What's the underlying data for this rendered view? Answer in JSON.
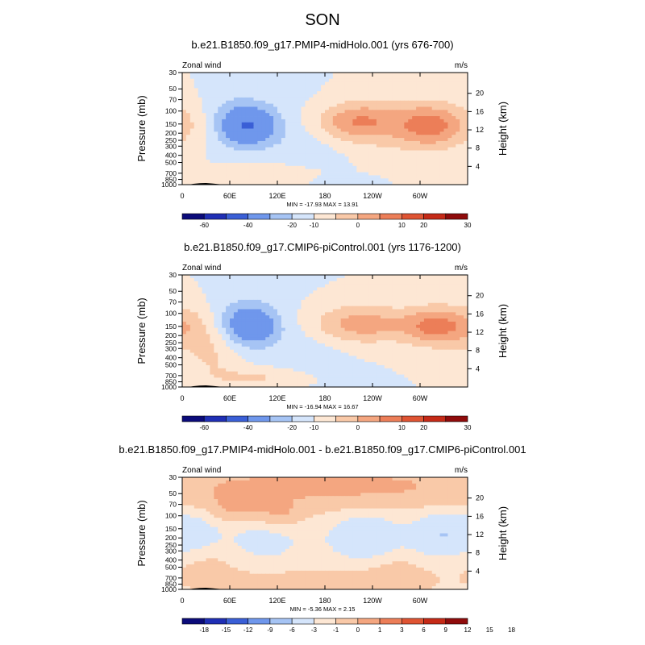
{
  "title": "SON",
  "colors": {
    "full": [
      "#0b0b7a",
      "#1f2fb5",
      "#3a5fd6",
      "#6f97ec",
      "#a6c4f4",
      "#d5e5fb",
      "#fde7d4",
      "#f9c9a8",
      "#f4a680",
      "#ec7e58",
      "#df5433",
      "#c52a17",
      "#8f0b0b"
    ],
    "diff": [
      "#0b0b7a",
      "#1f2fb5",
      "#3a5fd6",
      "#6f97ec",
      "#a6c4f4",
      "#d5e5fb",
      "#fde7d4",
      "#f9c9a8",
      "#f4a680",
      "#ec7e58",
      "#df5433",
      "#c52a17",
      "#8f0b0b"
    ],
    "topography": "#000000"
  },
  "chart_data": [
    {
      "type": "heatmap",
      "panel": "top",
      "title": "b.e21.B1850.f09_g17.PMIP4-midHolo.001 (yrs 676-700)",
      "left_label": "Zonal wind",
      "right_label": "m/s",
      "ylabel_left": "Pressure (mb)",
      "ylabel_right": "Height (km)",
      "x_ticks": [
        "0",
        "60E",
        "120E",
        "180",
        "120W",
        "60W"
      ],
      "x_tick_lon": [
        0,
        60,
        120,
        180,
        240,
        300
      ],
      "y_ticks": [
        "30",
        "50",
        "70",
        "100",
        "150",
        "200",
        "250",
        "300",
        "400",
        "500",
        "700",
        "850",
        "1000"
      ],
      "y_tick_p": [
        30,
        50,
        70,
        100,
        150,
        200,
        250,
        300,
        400,
        500,
        700,
        850,
        1000
      ],
      "height_ticks": [
        "4",
        "8",
        "12",
        "16",
        "20"
      ],
      "height_km": [
        4,
        8,
        12,
        16,
        20
      ],
      "stats": "MIN = -17.93   MAX =  13.91",
      "colorbar_labels": [
        "-60",
        "-40",
        "-20",
        "-10",
        "0",
        "10",
        "20",
        "30"
      ],
      "levels": [
        -70,
        -60,
        -50,
        -40,
        -30,
        -20,
        -15,
        -10,
        -5,
        0,
        5,
        10,
        15,
        20,
        25,
        30
      ],
      "min": -17.93,
      "max": 13.91,
      "features": [
        {
          "lon": 85,
          "p": 160,
          "amp": -16,
          "slon": 25,
          "sp": 0.45
        },
        {
          "lon": 60,
          "p": 135,
          "amp": -6,
          "slon": 35,
          "sp": 0.6
        },
        {
          "lon": 15,
          "p": 150,
          "amp": 5,
          "slon": 25,
          "sp": 0.5
        },
        {
          "lon": 215,
          "p": 140,
          "amp": 12,
          "slon": 35,
          "sp": 0.4
        },
        {
          "lon": 315,
          "p": 160,
          "amp": 13,
          "slon": 28,
          "sp": 0.45
        },
        {
          "lon": 270,
          "p": 150,
          "amp": 7,
          "slon": 55,
          "sp": 0.65
        },
        {
          "lon": 110,
          "p": 750,
          "amp": 5,
          "slon": 45,
          "sp": 0.25
        },
        {
          "lon": 160,
          "p": 250,
          "amp": -3,
          "slon": 40,
          "sp": 0.9
        },
        {
          "lon": 200,
          "p": 950,
          "amp": -3,
          "slon": 25,
          "sp": 0.15
        }
      ]
    },
    {
      "type": "heatmap",
      "panel": "middle",
      "title": "b.e21.B1850.f09_g17.CMIP6-piControl.001 (yrs 1176-1200)",
      "left_label": "Zonal wind",
      "right_label": "m/s",
      "ylabel_left": "Pressure (mb)",
      "ylabel_right": "Height (km)",
      "x_ticks": [
        "0",
        "60E",
        "120E",
        "180",
        "120W",
        "60W"
      ],
      "x_tick_lon": [
        0,
        60,
        120,
        180,
        240,
        300
      ],
      "y_ticks": [
        "30",
        "50",
        "70",
        "100",
        "150",
        "200",
        "250",
        "300",
        "400",
        "500",
        "700",
        "850",
        "1000"
      ],
      "y_tick_p": [
        30,
        50,
        70,
        100,
        150,
        200,
        250,
        300,
        400,
        500,
        700,
        850,
        1000
      ],
      "height_ticks": [
        "4",
        "8",
        "12",
        "16",
        "20"
      ],
      "height_km": [
        4,
        8,
        12,
        16,
        20
      ],
      "stats": "MIN = -16.94   MAX =  16.67",
      "colorbar_labels": [
        "-60",
        "-40",
        "-20",
        "-10",
        "0",
        "10",
        "20",
        "30"
      ],
      "levels": [
        -70,
        -60,
        -50,
        -40,
        -30,
        -20,
        -15,
        -10,
        -5,
        0,
        5,
        10,
        15,
        20,
        25,
        30
      ],
      "min": -16.94,
      "max": 16.67,
      "features": [
        {
          "lon": 88,
          "p": 150,
          "amp": -15,
          "slon": 22,
          "sp": 0.4
        },
        {
          "lon": 70,
          "p": 120,
          "amp": -6,
          "slon": 35,
          "sp": 0.6
        },
        {
          "lon": 15,
          "p": 150,
          "amp": 7,
          "slon": 28,
          "sp": 0.55
        },
        {
          "lon": 225,
          "p": 140,
          "amp": 13,
          "slon": 45,
          "sp": 0.42
        },
        {
          "lon": 320,
          "p": 150,
          "amp": 16,
          "slon": 28,
          "sp": 0.42
        },
        {
          "lon": 40,
          "p": 400,
          "amp": 5,
          "slon": 25,
          "sp": 0.6
        },
        {
          "lon": 100,
          "p": 750,
          "amp": 6,
          "slon": 40,
          "sp": 0.22
        },
        {
          "lon": 150,
          "p": 300,
          "amp": -3,
          "slon": 40,
          "sp": 0.8
        }
      ]
    },
    {
      "type": "heatmap",
      "panel": "bottom",
      "title": "b.e21.B1850.f09_g17.PMIP4-midHolo.001 - b.e21.B1850.f09_g17.CMIP6-piControl.001",
      "left_label": "Zonal wind",
      "right_label": "m/s",
      "ylabel_left": "Pressure (mb)",
      "ylabel_right": "Height (km)",
      "x_ticks": [
        "0",
        "60E",
        "120E",
        "180",
        "120W",
        "60W"
      ],
      "x_tick_lon": [
        0,
        60,
        120,
        180,
        240,
        300
      ],
      "y_ticks": [
        "30",
        "50",
        "70",
        "100",
        "150",
        "200",
        "250",
        "300",
        "400",
        "500",
        "700",
        "850",
        "1000"
      ],
      "y_tick_p": [
        30,
        50,
        70,
        100,
        150,
        200,
        250,
        300,
        400,
        500,
        700,
        850,
        1000
      ],
      "height_ticks": [
        "4",
        "8",
        "12",
        "16",
        "20"
      ],
      "height_km": [
        4,
        8,
        12,
        16,
        20
      ],
      "stats": "MIN = -5.36   MAX =  2.15",
      "colorbar_labels": [
        "-18",
        "-15",
        "-12",
        "-9",
        "-6",
        "-3",
        "-1",
        "0",
        "1",
        "3",
        "6",
        "9",
        "12",
        "15",
        "18"
      ],
      "levels": [
        -18,
        -15,
        -12,
        -9,
        -6,
        -3,
        -1,
        0,
        1,
        3,
        6,
        9,
        12,
        15,
        18
      ],
      "min": -5.36,
      "max": 2.15,
      "base": -1.5,
      "features": [
        {
          "lon": 10,
          "p": 180,
          "amp": -3.5,
          "slon": 25,
          "sp": 0.5
        },
        {
          "lon": 230,
          "p": 190,
          "amp": -4.5,
          "slon": 30,
          "sp": 0.5
        },
        {
          "lon": 320,
          "p": 180,
          "amp": -4,
          "slon": 25,
          "sp": 0.5
        },
        {
          "lon": 100,
          "p": 220,
          "amp": -2.5,
          "slon": 40,
          "sp": 0.5
        },
        {
          "lon": 125,
          "p": 100,
          "amp": 2.2,
          "slon": 18,
          "sp": 0.3
        },
        {
          "lon": 70,
          "p": 80,
          "amp": 2.2,
          "slon": 25,
          "sp": 0.35
        },
        {
          "lon": 180,
          "p": 40,
          "amp": 3,
          "slon": 200,
          "sp": 0.55
        },
        {
          "lon": 160,
          "p": 800,
          "amp": 1.8,
          "slon": 80,
          "sp": 0.25
        },
        {
          "lon": 30,
          "p": 400,
          "amp": 1.5,
          "slon": 35,
          "sp": 0.5
        },
        {
          "lon": 270,
          "p": 600,
          "amp": 1.5,
          "slon": 30,
          "sp": 0.4
        }
      ]
    }
  ]
}
